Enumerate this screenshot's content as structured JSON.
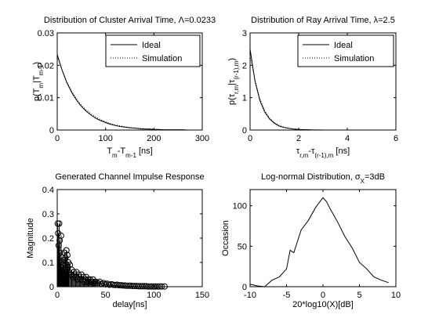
{
  "chart_data": [
    {
      "type": "line",
      "title": "Distribution of Cluster Arrival Time, Λ=0.0233",
      "xlabel": "T_m-T_m-1 [ns]",
      "ylabel": "p(T_m|T_m-1)",
      "xlim": [
        0,
        300
      ],
      "ylim": [
        0,
        0.03
      ],
      "xticks": [
        "0",
        "100",
        "200",
        "300"
      ],
      "yticks": [
        "0",
        "0.01",
        "0.02",
        "0.03"
      ],
      "legend": "top-right",
      "series": [
        {
          "name": "Ideal",
          "style": "solid",
          "x": [
            0,
            10,
            20,
            30,
            40,
            50,
            60,
            70,
            80,
            90,
            100,
            110,
            120,
            130,
            140,
            150,
            160,
            170,
            180,
            190,
            200,
            210,
            220,
            230,
            240,
            250,
            260,
            270,
            280,
            290,
            300
          ],
          "y": [
            0.0233,
            0.0185,
            0.0146,
            0.0116,
            0.0092,
            0.0073,
            0.0058,
            0.0046,
            0.0036,
            0.0029,
            0.0023,
            0.0018,
            0.0014,
            0.0011,
            0.0009,
            0.0007,
            0.0006,
            0.0004,
            0.0003,
            0.0003,
            0.0002,
            0.0002,
            0.0001,
            0.0001,
            0.0001,
            0.0001,
            0.0001,
            0.0,
            0.0,
            0.0,
            0.0
          ]
        },
        {
          "name": "Simulation",
          "style": "dotted",
          "x": [
            0,
            10,
            20,
            30,
            40,
            50,
            60,
            70,
            80,
            90,
            100,
            120,
            140,
            160,
            180,
            200
          ],
          "y": [
            0.0228,
            0.0186,
            0.0149,
            0.012,
            0.0096,
            0.0077,
            0.0062,
            0.005,
            0.004,
            0.0032,
            0.0025,
            0.0016,
            0.001,
            0.0006,
            0.0004,
            0.0003
          ]
        }
      ]
    },
    {
      "type": "line",
      "title": "Distribution of Ray Arrival Time, λ=2.5",
      "xlabel": "τ_r,m-τ_(r-1),m [ns]",
      "ylabel": "p(τ_r,m|τ_(r-1),m)",
      "xlim": [
        0,
        6
      ],
      "ylim": [
        0,
        3
      ],
      "xticks": [
        "0",
        "2",
        "4",
        "6"
      ],
      "yticks": [
        "0",
        "1",
        "2",
        "3"
      ],
      "legend": "top-right",
      "series": [
        {
          "name": "Ideal",
          "style": "solid",
          "x": [
            0,
            0.2,
            0.4,
            0.6,
            0.8,
            1.0,
            1.2,
            1.4,
            1.6,
            1.8,
            2.0,
            2.5,
            3.0,
            3.5,
            4.0,
            4.5,
            5.0
          ],
          "y": [
            2.5,
            1.52,
            0.92,
            0.56,
            0.34,
            0.21,
            0.12,
            0.08,
            0.05,
            0.03,
            0.02,
            0.005,
            0.001,
            0.0,
            0.0,
            0.0,
            0.0
          ]
        },
        {
          "name": "Simulation",
          "style": "dotted",
          "x": [
            0,
            0.2,
            0.4,
            0.6,
            0.8,
            1.0,
            1.2,
            1.4,
            1.6,
            1.8,
            2.0,
            2.5,
            3.0
          ],
          "y": [
            2.3,
            1.55,
            0.97,
            0.6,
            0.37,
            0.23,
            0.14,
            0.09,
            0.055,
            0.035,
            0.02,
            0.006,
            0.002
          ]
        }
      ]
    },
    {
      "type": "scatter",
      "title": "Generated Channel Impulse Response",
      "xlabel": "delay[ns]",
      "ylabel": "Magnitude",
      "xlim": [
        0,
        150
      ],
      "ylim": [
        0,
        0.4
      ],
      "xticks": [
        "0",
        "50",
        "100",
        "150"
      ],
      "yticks": [
        "0",
        "0.1",
        "0.2",
        "0.3",
        "0.4"
      ],
      "marker": "circle",
      "stem": true,
      "points": [
        [
          0.5,
          0.26
        ],
        [
          1.0,
          0.22
        ],
        [
          1.5,
          0.17
        ],
        [
          2.0,
          0.26
        ],
        [
          2.5,
          0.19
        ],
        [
          3.0,
          0.14
        ],
        [
          3.5,
          0.1
        ],
        [
          4.0,
          0.21
        ],
        [
          4.5,
          0.08
        ],
        [
          5.0,
          0.12
        ],
        [
          5.5,
          0.06
        ],
        [
          6.0,
          0.09
        ],
        [
          6.5,
          0.05
        ],
        [
          7.0,
          0.11
        ],
        [
          7.5,
          0.14
        ],
        [
          8.0,
          0.07
        ],
        [
          8.5,
          0.12
        ],
        [
          9.0,
          0.06
        ],
        [
          9.5,
          0.15
        ],
        [
          10.0,
          0.09
        ],
        [
          10.5,
          0.13
        ],
        [
          11.0,
          0.08
        ],
        [
          11.5,
          0.1
        ],
        [
          12.0,
          0.06
        ],
        [
          13.0,
          0.09
        ],
        [
          14.0,
          0.05
        ],
        [
          15.0,
          0.07
        ],
        [
          16.0,
          0.04
        ],
        [
          17.0,
          0.06
        ],
        [
          18.0,
          0.05
        ],
        [
          19.0,
          0.04
        ],
        [
          20.0,
          0.06
        ],
        [
          21.0,
          0.03
        ],
        [
          22.0,
          0.05
        ],
        [
          23.0,
          0.04
        ],
        [
          24.0,
          0.03
        ],
        [
          25.0,
          0.05
        ],
        [
          26.0,
          0.03
        ],
        [
          27.0,
          0.04
        ],
        [
          28.0,
          0.02
        ],
        [
          29.0,
          0.03
        ],
        [
          30.0,
          0.04
        ],
        [
          31.0,
          0.02
        ],
        [
          32.0,
          0.03
        ],
        [
          33.0,
          0.02
        ],
        [
          34.0,
          0.03
        ],
        [
          35.0,
          0.02
        ],
        [
          36.0,
          0.02
        ],
        [
          37.0,
          0.03
        ],
        [
          38.0,
          0.015
        ],
        [
          39.0,
          0.02
        ],
        [
          40.0,
          0.02
        ],
        [
          42.0,
          0.015
        ],
        [
          44.0,
          0.02
        ],
        [
          46.0,
          0.012
        ],
        [
          48.0,
          0.015
        ],
        [
          50.0,
          0.01
        ],
        [
          52.0,
          0.012
        ],
        [
          54.0,
          0.008
        ],
        [
          56.0,
          0.01
        ],
        [
          58.0,
          0.008
        ],
        [
          60.0,
          0.007
        ],
        [
          62.0,
          0.008
        ],
        [
          64.0,
          0.006
        ],
        [
          66.0,
          0.006
        ],
        [
          68.0,
          0.005
        ],
        [
          70.0,
          0.005
        ],
        [
          72.0,
          0.004
        ],
        [
          74.0,
          0.004
        ],
        [
          76.0,
          0.004
        ],
        [
          78.0,
          0.003
        ],
        [
          80.0,
          0.003
        ],
        [
          82.0,
          0.003
        ],
        [
          84.0,
          0.002
        ],
        [
          86.0,
          0.002
        ],
        [
          88.0,
          0.002
        ],
        [
          90.0,
          0.002
        ],
        [
          92.0,
          0.002
        ],
        [
          94.0,
          0.001
        ],
        [
          96.0,
          0.001
        ],
        [
          98.0,
          0.001
        ],
        [
          100.0,
          0.001
        ],
        [
          102.0,
          0.001
        ],
        [
          104.0,
          0.001
        ],
        [
          106.0,
          0.001
        ],
        [
          108.0,
          0.001
        ],
        [
          111.0,
          0.001
        ]
      ]
    },
    {
      "type": "line",
      "title": "Log-normal Distribution, σ_X=3dB",
      "xlabel": "20*log10(X)[dB]",
      "ylabel": "Occasion",
      "xlim": [
        -10,
        10
      ],
      "ylim": [
        0,
        120
      ],
      "xticks": [
        "-10",
        "-5",
        "0",
        "5",
        "10"
      ],
      "yticks": [
        "0",
        "50",
        "100"
      ],
      "series": [
        {
          "x": [
            -10,
            -9,
            -8,
            -7,
            -6,
            -5,
            -4.5,
            -4,
            -3,
            -2,
            -1,
            0,
            0.5,
            1,
            2,
            3,
            4,
            5,
            6,
            7,
            8,
            9
          ],
          "y": [
            3,
            1,
            0,
            8,
            12,
            22,
            45,
            42,
            70,
            82,
            98,
            110,
            105,
            96,
            80,
            62,
            48,
            30,
            22,
            12,
            8,
            5
          ]
        }
      ]
    }
  ]
}
